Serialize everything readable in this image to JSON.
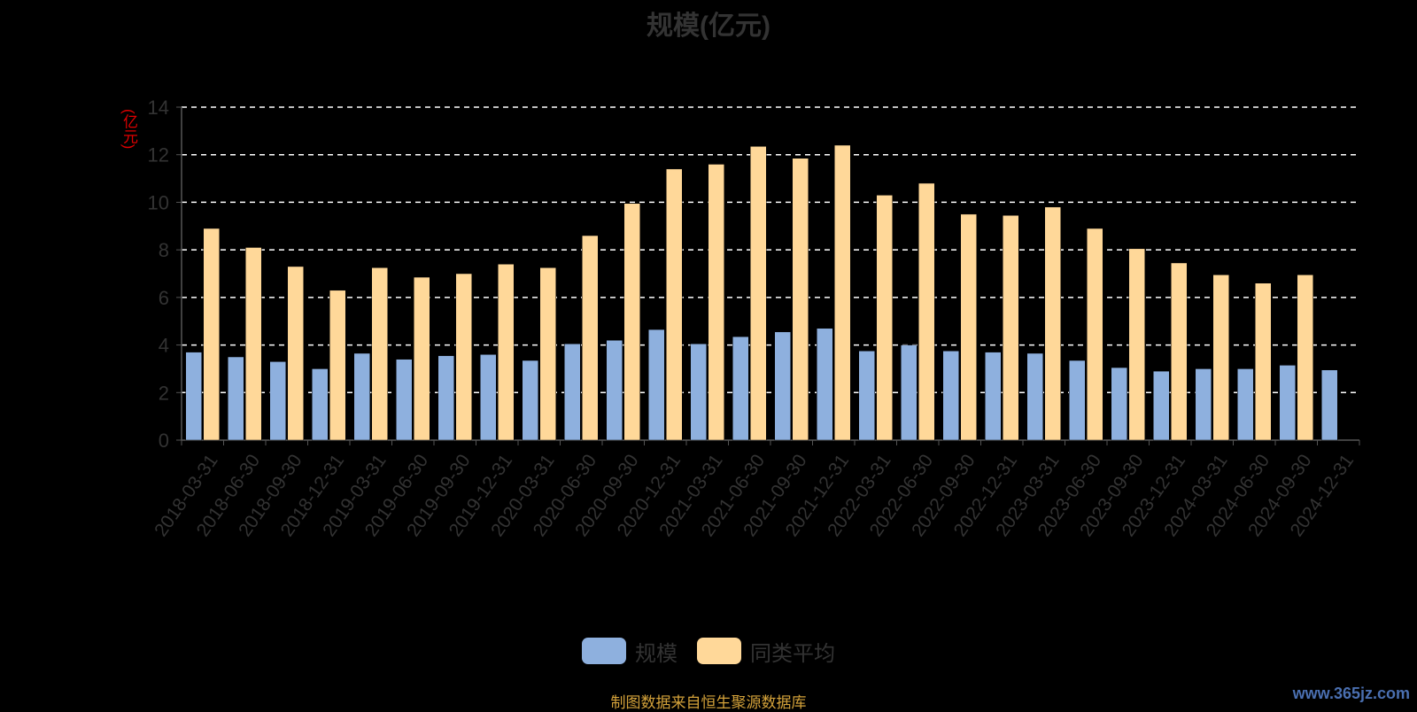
{
  "chart_data": {
    "type": "bar",
    "title": "规模(亿元)",
    "ylabel": "(亿元)",
    "ylim": [
      0,
      14
    ],
    "yticks": [
      0,
      2,
      4,
      6,
      8,
      10,
      12,
      14
    ],
    "grid": true,
    "legend_position": "bottom",
    "categories": [
      "2018-03-31",
      "2018-06-30",
      "2018-09-30",
      "2018-12-31",
      "2019-03-31",
      "2019-06-30",
      "2019-09-30",
      "2019-12-31",
      "2020-03-31",
      "2020-06-30",
      "2020-09-30",
      "2020-12-31",
      "2021-03-31",
      "2021-06-30",
      "2021-09-30",
      "2021-12-31",
      "2022-03-31",
      "2022-06-30",
      "2022-09-30",
      "2022-12-31",
      "2023-03-31",
      "2023-06-30",
      "2023-09-30",
      "2023-12-31",
      "2024-03-31",
      "2024-06-30",
      "2024-09-30",
      "2024-12-31"
    ],
    "series": [
      {
        "name": "规模",
        "color": "#8eb0de",
        "values": [
          3.7,
          3.5,
          3.3,
          3.0,
          3.65,
          3.4,
          3.55,
          3.6,
          3.35,
          4.05,
          4.2,
          4.65,
          4.05,
          4.35,
          4.55,
          4.7,
          3.75,
          4.0,
          3.75,
          3.7,
          3.65,
          3.35,
          3.05,
          2.9,
          3.0,
          3.0,
          3.15,
          2.95
        ]
      },
      {
        "name": "同类平均",
        "color": "#ffd899",
        "values": [
          8.9,
          8.1,
          7.3,
          6.3,
          7.25,
          6.85,
          7.0,
          7.4,
          7.25,
          8.6,
          9.95,
          11.4,
          11.6,
          12.35,
          11.85,
          12.4,
          10.3,
          10.8,
          9.5,
          9.45,
          9.8,
          8.9,
          8.05,
          7.45,
          6.95,
          6.6,
          6.95,
          null
        ]
      }
    ]
  },
  "footer": {
    "source": "制图数据来自恒生聚源数据库",
    "watermark": "www.365jz.com"
  }
}
